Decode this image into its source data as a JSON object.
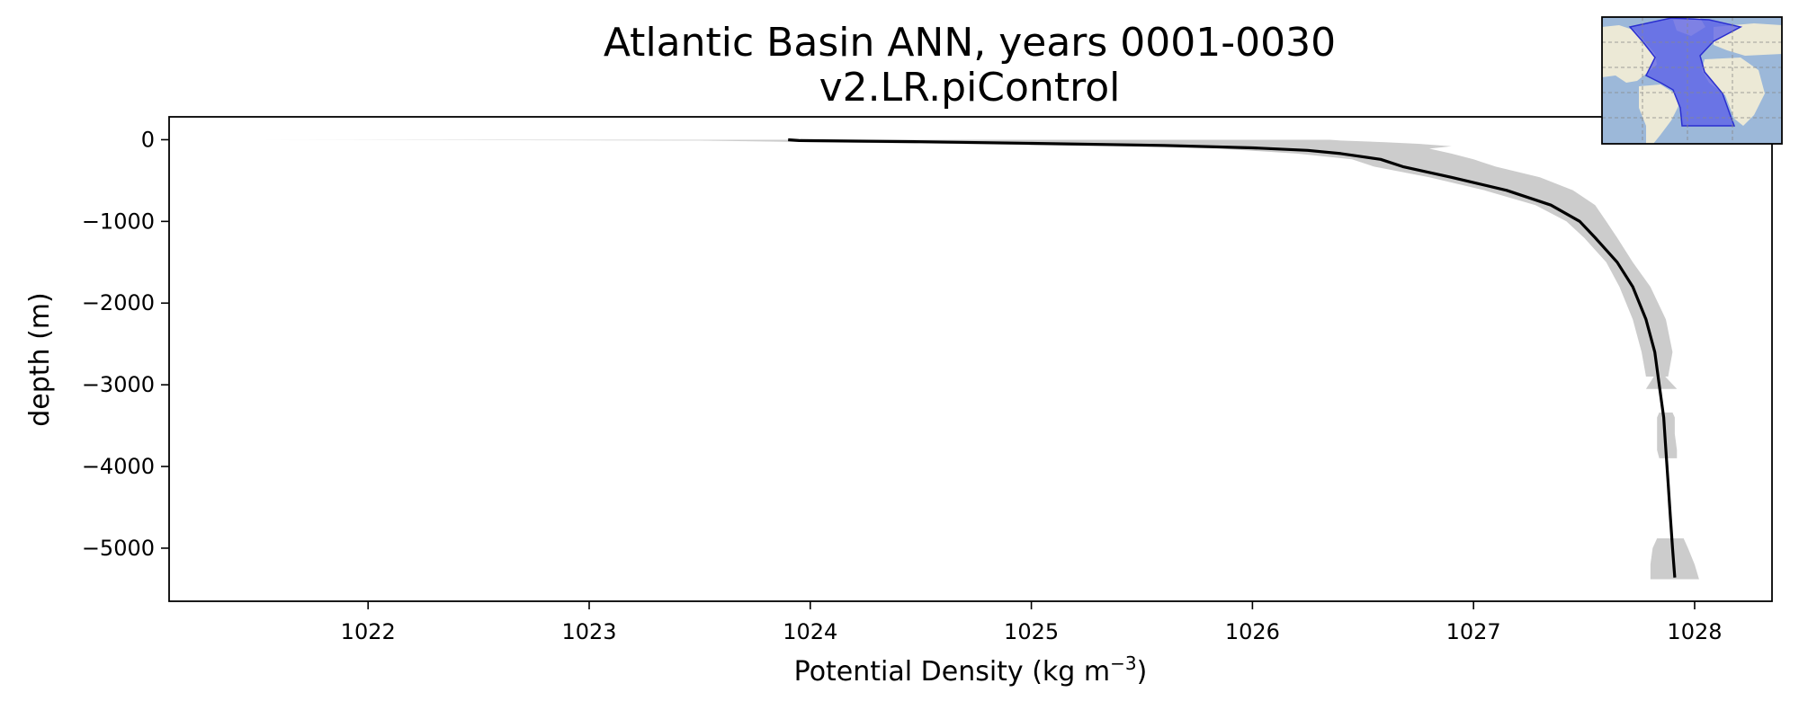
{
  "chart_data": {
    "type": "line",
    "title": "Atlantic Basin ANN, years 0001-0030",
    "subtitle": "v2.LR.piControl",
    "xlabel": "Potential Density (kg m",
    "xlabel_superscript": "−3",
    "xlabel_suffix": ")",
    "ylabel": "depth (m)",
    "xlim": [
      1021.1,
      1028.35
    ],
    "ylim": [
      -5650,
      280
    ],
    "xticks": [
      1022,
      1023,
      1024,
      1025,
      1026,
      1027,
      1028
    ],
    "xtick_labels": [
      "1022",
      "1023",
      "1024",
      "1025",
      "1026",
      "1027",
      "1028"
    ],
    "yticks": [
      0,
      -1000,
      -2000,
      -3000,
      -4000,
      -5000
    ],
    "ytick_labels": [
      "0",
      "−1000",
      "−2000",
      "−3000",
      "−4000",
      "−5000"
    ],
    "grid": false,
    "series": [
      {
        "role": "mean",
        "color": "#000000",
        "x": [
          1023.9,
          1023.95,
          1024.5,
          1025.0,
          1025.6,
          1026.0,
          1026.25,
          1026.4,
          1026.58,
          1026.68,
          1026.9,
          1027.15,
          1027.35,
          1027.48,
          1027.55,
          1027.65,
          1027.72,
          1027.78,
          1027.82,
          1027.84,
          1027.86,
          1027.87,
          1027.88,
          1027.89,
          1027.9,
          1027.91
        ],
        "y": [
          0,
          -10,
          -25,
          -45,
          -70,
          -100,
          -130,
          -170,
          -240,
          -330,
          -460,
          -620,
          -800,
          -1000,
          -1200,
          -1500,
          -1800,
          -2200,
          -2600,
          -3000,
          -3400,
          -3800,
          -4200,
          -4600,
          -5000,
          -5360
        ]
      }
    ],
    "range_band": {
      "color": "#cccccc",
      "segments": [
        {
          "y": [
            0,
            -10,
            -30,
            -50,
            -80,
            -110,
            -170,
            -240,
            -330,
            -460,
            -620,
            -800,
            -1000,
            -1200,
            -1500,
            -1800,
            -2200,
            -2600,
            -2900
          ],
          "x_low": [
            1021.5,
            1023.5,
            1024.0,
            1024.6,
            1025.4,
            1025.85,
            1026.2,
            1026.45,
            1026.55,
            1026.8,
            1027.05,
            1027.28,
            1027.42,
            1027.5,
            1027.6,
            1027.66,
            1027.72,
            1027.76,
            1027.78
          ],
          "x_high": [
            1026.35,
            1026.4,
            1026.6,
            1026.75,
            1026.9,
            1026.8,
            1026.9,
            1027.0,
            1027.1,
            1027.3,
            1027.45,
            1027.55,
            1027.6,
            1027.65,
            1027.72,
            1027.8,
            1027.87,
            1027.9,
            1027.88
          ]
        },
        {
          "y": [
            -2880,
            -3050
          ],
          "x_low": [
            1027.82,
            1027.78
          ],
          "x_high": [
            1027.86,
            1027.92
          ]
        },
        {
          "y": [
            -3340,
            -3400,
            -3600,
            -3800,
            -3900
          ],
          "x_low": [
            1027.84,
            1027.83,
            1027.83,
            1027.83,
            1027.84
          ],
          "x_high": [
            1027.9,
            1027.91,
            1027.91,
            1027.92,
            1027.92
          ]
        },
        {
          "y": [
            -4880,
            -5000,
            -5200,
            -5380
          ],
          "x_low": [
            1027.83,
            1027.81,
            1027.8,
            1027.8
          ],
          "x_high": [
            1027.95,
            1027.97,
            1028.0,
            1028.02
          ]
        }
      ]
    }
  },
  "inset_map": {
    "ocean_color": "#9cb8d9",
    "land_color": "#ece9d6",
    "basin_color": "#5a5ee8"
  }
}
